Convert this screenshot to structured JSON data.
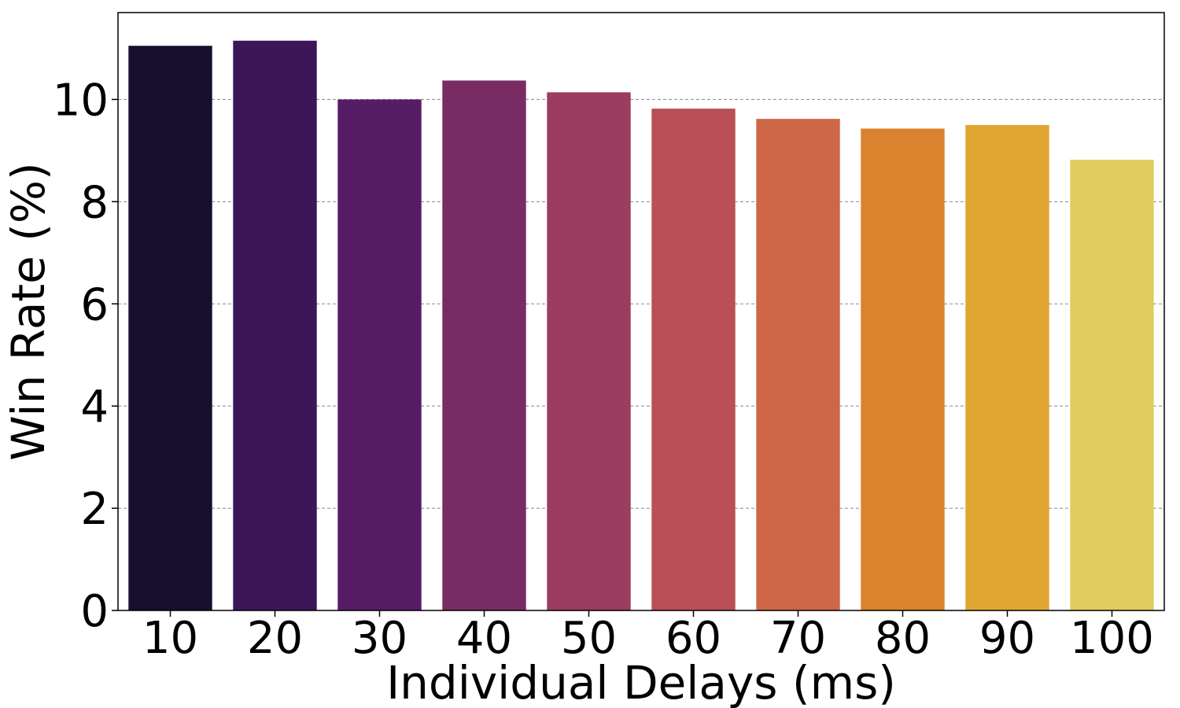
{
  "chart_data": {
    "type": "bar",
    "title": "",
    "xlabel": "Individual Delays (ms)",
    "ylabel": "Win Rate (%)",
    "categories": [
      "10",
      "20",
      "30",
      "40",
      "50",
      "60",
      "70",
      "80",
      "90",
      "100"
    ],
    "values": [
      11.05,
      11.15,
      10.0,
      10.37,
      10.14,
      9.82,
      9.62,
      9.43,
      9.5,
      8.82
    ],
    "ylim": [
      0,
      11.7
    ],
    "yticks": [
      0,
      2,
      4,
      6,
      8,
      10
    ],
    "grid": "y-dashed",
    "legend": "none",
    "colors": [
      "#180f2f",
      "#3c1658",
      "#561c66",
      "#782c63",
      "#9a3d5f",
      "#b94f57",
      "#cd6747",
      "#d9832e",
      "#dfa632",
      "#e0cc60"
    ]
  }
}
